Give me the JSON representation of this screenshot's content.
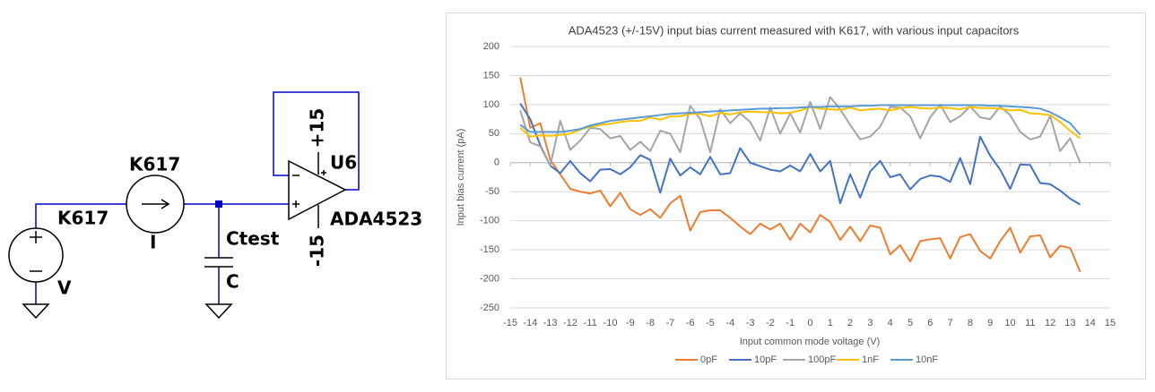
{
  "schematic": {
    "source_label": "K617",
    "meter_label": "K617",
    "current_label": "I",
    "voltage_label": "V",
    "cap_name": "Ctest",
    "cap_value": "C",
    "pos_supply": "+15",
    "neg_supply": "-15",
    "opamp_ref": "U6",
    "opamp_part": "ADA4523"
  },
  "chart_data": {
    "type": "line",
    "title": "ADA4523 (+/-15V) input bias current measured with K617, with various input capacitors",
    "x_label": "Input common mode voltage (V)",
    "y_label": "Input bias current (pA)",
    "x": [
      -14.5,
      -14,
      -13.5,
      -13,
      -12.5,
      -12,
      -11.5,
      -11,
      -10.5,
      -10,
      -9.5,
      -9,
      -8.5,
      -8,
      -7.5,
      -7,
      -6.5,
      -6,
      -5.5,
      -5,
      -4.5,
      -4,
      -3.5,
      -3,
      -2.5,
      -2,
      -1.5,
      -1,
      -0.5,
      0,
      0.5,
      1,
      1.5,
      2,
      2.5,
      3,
      3.5,
      4,
      4.5,
      5,
      5.5,
      6,
      6.5,
      7,
      7.5,
      8,
      8.5,
      9,
      9.5,
      10,
      10.5,
      11,
      11.5,
      12,
      12.5,
      13,
      13.5
    ],
    "series": [
      {
        "name": "0pF",
        "color": "#ed7d31",
        "values": [
          147,
          60,
          68,
          5,
          -20,
          -45,
          -50,
          -53,
          -48,
          -75,
          -52,
          -80,
          -90,
          -80,
          -95,
          -70,
          -57,
          -117,
          -85,
          -82,
          -82,
          -95,
          -110,
          -123,
          -105,
          -115,
          -105,
          -133,
          -105,
          -120,
          -90,
          -102,
          -133,
          -110,
          -135,
          -108,
          -112,
          -158,
          -142,
          -170,
          -135,
          -132,
          -130,
          -165,
          -128,
          -123,
          -152,
          -165,
          -135,
          -112,
          -155,
          -127,
          -125,
          -163,
          -143,
          -147,
          -188
        ]
      },
      {
        "name": "10pF",
        "color": "#4472c4",
        "values": [
          102,
          75,
          30,
          -5,
          -18,
          3,
          -18,
          -32,
          -12,
          -11,
          -20,
          -8,
          13,
          5,
          -52,
          7,
          -22,
          -8,
          -20,
          10,
          -20,
          -18,
          25,
          0,
          -6,
          -12,
          -15,
          -5,
          -15,
          15,
          -15,
          3,
          -70,
          -20,
          -60,
          -15,
          3,
          -25,
          -20,
          -46,
          -28,
          -22,
          -24,
          -33,
          8,
          -37,
          45,
          12,
          -12,
          -45,
          -3,
          -4,
          -35,
          -37,
          -48,
          -62,
          -72
        ]
      },
      {
        "name": "100pF",
        "color": "#a5a5a5",
        "values": [
          90,
          35,
          28,
          -5,
          72,
          22,
          38,
          60,
          58,
          42,
          46,
          22,
          36,
          20,
          55,
          50,
          18,
          98,
          75,
          18,
          92,
          68,
          85,
          70,
          38,
          95,
          50,
          85,
          52,
          105,
          58,
          113,
          92,
          65,
          40,
          45,
          62,
          96,
          95,
          80,
          42,
          78,
          100,
          70,
          80,
          97,
          78,
          75,
          97,
          82,
          53,
          40,
          45,
          80,
          20,
          42,
          0
        ]
      },
      {
        "name": "1nF",
        "color": "#ffc000",
        "values": [
          60,
          45,
          47,
          46,
          48,
          50,
          57,
          62,
          65,
          67,
          70,
          72,
          72,
          78,
          74,
          80,
          80,
          84,
          84,
          80,
          86,
          83,
          87,
          88,
          87,
          87,
          85,
          86,
          90,
          96,
          93,
          92,
          91,
          95,
          90,
          92,
          93,
          90,
          94,
          96,
          94,
          93,
          95,
          94,
          92,
          96,
          94,
          94,
          93,
          90,
          91,
          85,
          84,
          82,
          70,
          55,
          42
        ]
      },
      {
        "name": "10nF",
        "color": "#5b9bd5",
        "values": [
          65,
          53,
          53,
          53,
          53,
          55,
          58,
          64,
          68,
          72,
          74,
          76,
          78,
          80,
          82,
          84,
          85,
          86,
          87,
          88,
          89,
          90,
          91,
          92,
          93,
          93,
          94,
          94,
          95,
          96,
          96,
          97,
          97,
          97,
          98,
          98,
          99,
          99,
          99,
          99,
          99,
          99,
          99,
          99,
          99,
          99,
          99,
          98,
          98,
          97,
          96,
          95,
          93,
          87,
          78,
          68,
          48
        ]
      }
    ],
    "xlim": [
      -15,
      15
    ],
    "xticks": [
      -15,
      -14,
      -13,
      -12,
      -11,
      -10,
      -9,
      -8,
      -7,
      -6,
      -5,
      -4,
      -3,
      -2,
      -1,
      0,
      1,
      2,
      3,
      4,
      5,
      6,
      7,
      8,
      9,
      10,
      11,
      12,
      13,
      14,
      15
    ],
    "ylim": [
      -250,
      200
    ],
    "yticks": [
      -250,
      -200,
      -150,
      -100,
      -50,
      0,
      50,
      100,
      150,
      200
    ],
    "grid": true,
    "legend": "bottom"
  }
}
